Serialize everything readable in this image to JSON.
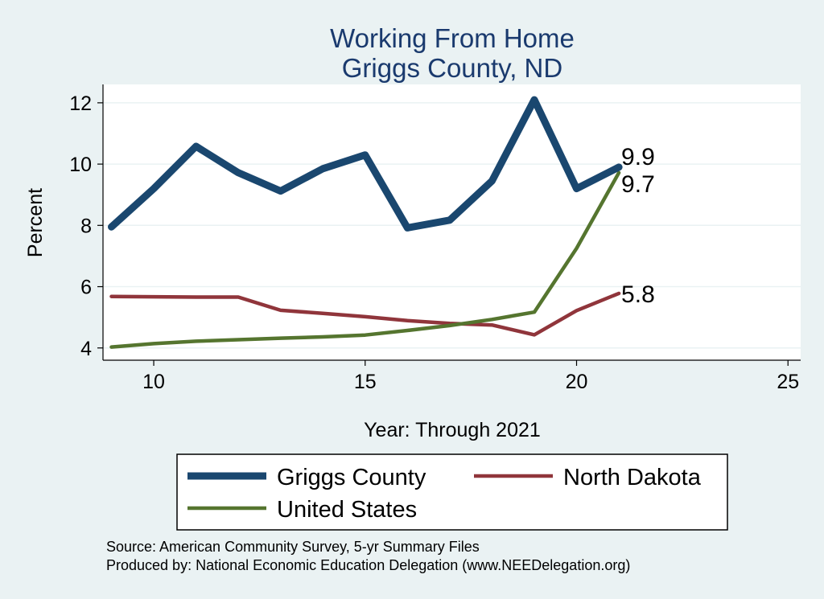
{
  "chart_data": {
    "type": "line",
    "title": "Working From Home",
    "subtitle": "Griggs County, ND",
    "xlabel": "Year: Through 2021",
    "ylabel": "Percent",
    "xlim": [
      8.8,
      25.3
    ],
    "ylim": [
      3.6,
      12.6
    ],
    "xticks": [
      10,
      15,
      20,
      25
    ],
    "yticks": [
      4,
      6,
      8,
      10,
      12
    ],
    "grid": true,
    "legend_position": "bottom",
    "series": [
      {
        "name": "Griggs County",
        "color": "#1a476f",
        "x": [
          9,
          10,
          11,
          12,
          13,
          14,
          15,
          16,
          17,
          18,
          19,
          20,
          21
        ],
        "values": [
          7.95,
          9.2,
          10.58,
          9.72,
          9.12,
          9.85,
          10.3,
          7.92,
          8.17,
          9.45,
          12.1,
          9.2,
          9.9
        ],
        "end_label": "9.9"
      },
      {
        "name": "North Dakota",
        "color": "#90353b",
        "x": [
          9,
          10,
          11,
          12,
          13,
          14,
          15,
          16,
          17,
          18,
          19,
          20,
          21
        ],
        "values": [
          5.68,
          5.67,
          5.66,
          5.66,
          5.23,
          5.13,
          5.02,
          4.89,
          4.8,
          4.75,
          4.43,
          5.22,
          5.78
        ],
        "end_label": "5.8"
      },
      {
        "name": "United States",
        "color": "#55752f",
        "x": [
          9,
          10,
          11,
          12,
          13,
          14,
          15,
          16,
          17,
          18,
          19,
          20,
          21
        ],
        "values": [
          4.03,
          4.14,
          4.22,
          4.27,
          4.32,
          4.36,
          4.42,
          4.57,
          4.73,
          4.93,
          5.17,
          7.25,
          9.72
        ],
        "end_label": "9.7"
      }
    ],
    "notes": [
      "Source: American Community Survey, 5-yr Summary Files",
      "Produced by: National Economic Education Delegation (www.NEEDelegation.org)"
    ]
  }
}
